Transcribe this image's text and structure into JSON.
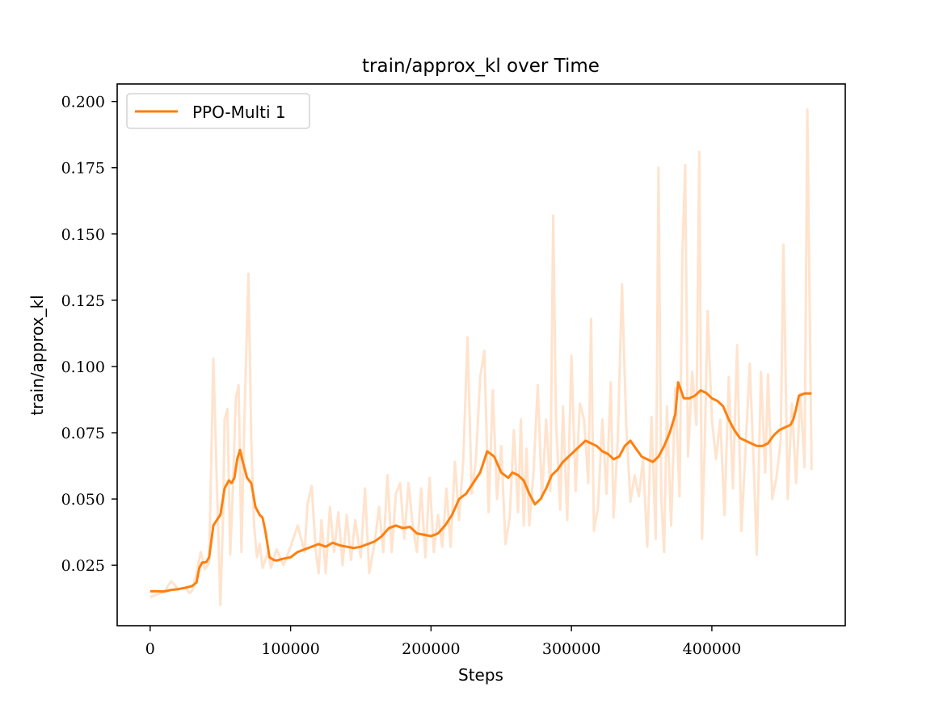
{
  "chart_data": {
    "type": "line",
    "title": "train/approx_kl over Time",
    "xlabel": "Steps",
    "ylabel": "train/approx_kl",
    "xlim": [
      -23500,
      495000
    ],
    "ylim": [
      0.0022,
      0.2066
    ],
    "x_ticks": [
      0,
      100000,
      200000,
      300000,
      400000
    ],
    "x_tick_labels": [
      "0",
      "100000",
      "200000",
      "300000",
      "400000"
    ],
    "y_ticks": [
      0.025,
      0.05,
      0.075,
      0.1,
      0.125,
      0.15,
      0.175,
      0.2
    ],
    "y_tick_labels": [
      "0.025",
      "0.050",
      "0.075",
      "0.100",
      "0.125",
      "0.150",
      "0.175",
      "0.200"
    ],
    "grid": false,
    "legend": {
      "position": "top-left",
      "entries": [
        "PPO-Multi 1"
      ]
    },
    "colors": {
      "smoothed": "#ff7f0e",
      "raw": "#ffe3cd",
      "axes": "#000000"
    },
    "series": [
      {
        "name": "PPO-Multi 1",
        "role": "smoothed",
        "points": [
          [
            0,
            0.0152
          ],
          [
            5000,
            0.0152
          ],
          [
            10000,
            0.0151
          ],
          [
            15000,
            0.0157
          ],
          [
            20000,
            0.016
          ],
          [
            25000,
            0.0165
          ],
          [
            30000,
            0.0172
          ],
          [
            33000,
            0.0185
          ],
          [
            35000,
            0.024
          ],
          [
            37000,
            0.026
          ],
          [
            40000,
            0.0262
          ],
          [
            42000,
            0.028
          ],
          [
            45000,
            0.04
          ],
          [
            48000,
            0.0425
          ],
          [
            50000,
            0.044
          ],
          [
            53000,
            0.054
          ],
          [
            56000,
            0.057
          ],
          [
            58000,
            0.056
          ],
          [
            60000,
            0.058
          ],
          [
            62000,
            0.065
          ],
          [
            64000,
            0.0685
          ],
          [
            66000,
            0.064
          ],
          [
            69000,
            0.058
          ],
          [
            72000,
            0.056
          ],
          [
            75000,
            0.047
          ],
          [
            78000,
            0.044
          ],
          [
            80000,
            0.043
          ],
          [
            82000,
            0.038
          ],
          [
            85000,
            0.028
          ],
          [
            88000,
            0.027
          ],
          [
            90000,
            0.0268
          ],
          [
            95000,
            0.0275
          ],
          [
            100000,
            0.028
          ],
          [
            105000,
            0.03
          ],
          [
            110000,
            0.031
          ],
          [
            115000,
            0.032
          ],
          [
            120000,
            0.033
          ],
          [
            125000,
            0.032
          ],
          [
            130000,
            0.0335
          ],
          [
            135000,
            0.0325
          ],
          [
            140000,
            0.032
          ],
          [
            145000,
            0.0315
          ],
          [
            150000,
            0.032
          ],
          [
            155000,
            0.033
          ],
          [
            160000,
            0.034
          ],
          [
            165000,
            0.036
          ],
          [
            170000,
            0.039
          ],
          [
            175000,
            0.04
          ],
          [
            180000,
            0.039
          ],
          [
            185000,
            0.0395
          ],
          [
            190000,
            0.037
          ],
          [
            195000,
            0.0365
          ],
          [
            200000,
            0.036
          ],
          [
            205000,
            0.037
          ],
          [
            210000,
            0.04
          ],
          [
            215000,
            0.044
          ],
          [
            220000,
            0.05
          ],
          [
            225000,
            0.052
          ],
          [
            230000,
            0.056
          ],
          [
            235000,
            0.06
          ],
          [
            240000,
            0.068
          ],
          [
            245000,
            0.066
          ],
          [
            250000,
            0.06
          ],
          [
            255000,
            0.058
          ],
          [
            258000,
            0.06
          ],
          [
            262000,
            0.059
          ],
          [
            266000,
            0.057
          ],
          [
            270000,
            0.052
          ],
          [
            274000,
            0.048
          ],
          [
            278000,
            0.05
          ],
          [
            282000,
            0.054
          ],
          [
            286000,
            0.059
          ],
          [
            290000,
            0.061
          ],
          [
            294000,
            0.064
          ],
          [
            298000,
            0.066
          ],
          [
            302000,
            0.068
          ],
          [
            306000,
            0.07
          ],
          [
            310000,
            0.072
          ],
          [
            314000,
            0.071
          ],
          [
            318000,
            0.07
          ],
          [
            322000,
            0.068
          ],
          [
            326000,
            0.067
          ],
          [
            330000,
            0.065
          ],
          [
            334000,
            0.066
          ],
          [
            338000,
            0.07
          ],
          [
            342000,
            0.072
          ],
          [
            346000,
            0.069
          ],
          [
            350000,
            0.066
          ],
          [
            354000,
            0.065
          ],
          [
            358000,
            0.064
          ],
          [
            362000,
            0.066
          ],
          [
            366000,
            0.07
          ],
          [
            370000,
            0.075
          ],
          [
            374000,
            0.082
          ],
          [
            376000,
            0.094
          ],
          [
            380000,
            0.088
          ],
          [
            384000,
            0.088
          ],
          [
            388000,
            0.089
          ],
          [
            392000,
            0.091
          ],
          [
            396000,
            0.09
          ],
          [
            400000,
            0.088
          ],
          [
            404000,
            0.087
          ],
          [
            408000,
            0.085
          ],
          [
            412000,
            0.08
          ],
          [
            416000,
            0.076
          ],
          [
            420000,
            0.073
          ],
          [
            424000,
            0.072
          ],
          [
            428000,
            0.071
          ],
          [
            432000,
            0.07
          ],
          [
            436000,
            0.07
          ],
          [
            440000,
            0.071
          ],
          [
            444000,
            0.074
          ],
          [
            448000,
            0.076
          ],
          [
            452000,
            0.077
          ],
          [
            456000,
            0.078
          ],
          [
            458000,
            0.08
          ],
          [
            460000,
            0.084
          ],
          [
            462000,
            0.089
          ],
          [
            466000,
            0.0898
          ],
          [
            471000,
            0.0898
          ]
        ]
      },
      {
        "name": "",
        "role": "raw",
        "points": [
          [
            0,
            0.013
          ],
          [
            5000,
            0.014
          ],
          [
            10000,
            0.015
          ],
          [
            15000,
            0.019
          ],
          [
            20000,
            0.016
          ],
          [
            25000,
            0.0165
          ],
          [
            28000,
            0.0145
          ],
          [
            30000,
            0.0155
          ],
          [
            33000,
            0.022
          ],
          [
            36000,
            0.03
          ],
          [
            39000,
            0.0235
          ],
          [
            42000,
            0.026
          ],
          [
            45000,
            0.103
          ],
          [
            48000,
            0.046
          ],
          [
            50000,
            0.01
          ],
          [
            52000,
            0.045
          ],
          [
            53000,
            0.08
          ],
          [
            55000,
            0.084
          ],
          [
            57000,
            0.029
          ],
          [
            59000,
            0.055
          ],
          [
            61000,
            0.088
          ],
          [
            63000,
            0.093
          ],
          [
            65000,
            0.03
          ],
          [
            67000,
            0.078
          ],
          [
            70000,
            0.135
          ],
          [
            72000,
            0.072
          ],
          [
            74000,
            0.04
          ],
          [
            76000,
            0.028
          ],
          [
            78000,
            0.033
          ],
          [
            80000,
            0.024
          ],
          [
            84000,
            0.03
          ],
          [
            86000,
            0.024
          ],
          [
            90000,
            0.031
          ],
          [
            95000,
            0.025
          ],
          [
            100000,
            0.032
          ],
          [
            105000,
            0.04
          ],
          [
            110000,
            0.03
          ],
          [
            112000,
            0.048
          ],
          [
            115000,
            0.055
          ],
          [
            118000,
            0.03
          ],
          [
            120000,
            0.022
          ],
          [
            122000,
            0.042
          ],
          [
            125000,
            0.022
          ],
          [
            128000,
            0.047
          ],
          [
            131000,
            0.03
          ],
          [
            134000,
            0.045
          ],
          [
            137000,
            0.025
          ],
          [
            140000,
            0.044
          ],
          [
            143000,
            0.027
          ],
          [
            146000,
            0.042
          ],
          [
            150000,
            0.028
          ],
          [
            153000,
            0.054
          ],
          [
            156000,
            0.022
          ],
          [
            160000,
            0.034
          ],
          [
            163000,
            0.047
          ],
          [
            166000,
            0.03
          ],
          [
            169000,
            0.059
          ],
          [
            172000,
            0.03
          ],
          [
            175000,
            0.052
          ],
          [
            178000,
            0.056
          ],
          [
            181000,
            0.035
          ],
          [
            184000,
            0.056
          ],
          [
            187000,
            0.04
          ],
          [
            190000,
            0.03
          ],
          [
            193000,
            0.054
          ],
          [
            196000,
            0.028
          ],
          [
            199000,
            0.058
          ],
          [
            202000,
            0.03
          ],
          [
            205000,
            0.044
          ],
          [
            208000,
            0.032
          ],
          [
            211000,
            0.054
          ],
          [
            214000,
            0.032
          ],
          [
            217000,
            0.064
          ],
          [
            220000,
            0.042
          ],
          [
            223000,
            0.065
          ],
          [
            226000,
            0.111
          ],
          [
            229000,
            0.052
          ],
          [
            232000,
            0.065
          ],
          [
            235000,
            0.096
          ],
          [
            238000,
            0.106
          ],
          [
            241000,
            0.045
          ],
          [
            244000,
            0.091
          ],
          [
            247000,
            0.05
          ],
          [
            250000,
            0.07
          ],
          [
            253000,
            0.033
          ],
          [
            256000,
            0.043
          ],
          [
            259000,
            0.076
          ],
          [
            262000,
            0.045
          ],
          [
            264000,
            0.08
          ],
          [
            266000,
            0.04
          ],
          [
            268000,
            0.069
          ],
          [
            270000,
            0.04
          ],
          [
            273000,
            0.06
          ],
          [
            276000,
            0.093
          ],
          [
            279000,
            0.05
          ],
          [
            282000,
            0.08
          ],
          [
            285000,
            0.053
          ],
          [
            287000,
            0.157
          ],
          [
            289000,
            0.08
          ],
          [
            292000,
            0.046
          ],
          [
            294000,
            0.085
          ],
          [
            297000,
            0.042
          ],
          [
            300000,
            0.104
          ],
          [
            303000,
            0.053
          ],
          [
            306000,
            0.086
          ],
          [
            309000,
            0.08
          ],
          [
            312000,
            0.056
          ],
          [
            314000,
            0.118
          ],
          [
            316000,
            0.038
          ],
          [
            319000,
            0.047
          ],
          [
            322000,
            0.08
          ],
          [
            325000,
            0.052
          ],
          [
            328000,
            0.094
          ],
          [
            330000,
            0.043
          ],
          [
            333000,
            0.072
          ],
          [
            336000,
            0.131
          ],
          [
            339000,
            0.078
          ],
          [
            342000,
            0.049
          ],
          [
            345000,
            0.059
          ],
          [
            348000,
            0.051
          ],
          [
            351000,
            0.065
          ],
          [
            354000,
            0.032
          ],
          [
            357000,
            0.081
          ],
          [
            360000,
            0.035
          ],
          [
            362000,
            0.175
          ],
          [
            364000,
            0.05
          ],
          [
            366000,
            0.03
          ],
          [
            368000,
            0.085
          ],
          [
            371000,
            0.04
          ],
          [
            374000,
            0.092
          ],
          [
            377000,
            0.051
          ],
          [
            379000,
            0.142
          ],
          [
            381000,
            0.176
          ],
          [
            383000,
            0.066
          ],
          [
            386000,
            0.098
          ],
          [
            389000,
            0.078
          ],
          [
            391000,
            0.181
          ],
          [
            393000,
            0.035
          ],
          [
            395000,
            0.072
          ],
          [
            397000,
            0.121
          ],
          [
            400000,
            0.08
          ],
          [
            403000,
            0.065
          ],
          [
            406000,
            0.08
          ],
          [
            409000,
            0.044
          ],
          [
            412000,
            0.096
          ],
          [
            415000,
            0.054
          ],
          [
            418000,
            0.108
          ],
          [
            421000,
            0.038
          ],
          [
            424000,
            0.069
          ],
          [
            427000,
            0.101
          ],
          [
            430000,
            0.06
          ],
          [
            432000,
            0.029
          ],
          [
            435000,
            0.098
          ],
          [
            438000,
            0.06
          ],
          [
            440000,
            0.097
          ],
          [
            443000,
            0.05
          ],
          [
            446000,
            0.058
          ],
          [
            449000,
            0.072
          ],
          [
            451000,
            0.146
          ],
          [
            454000,
            0.05
          ],
          [
            457000,
            0.086
          ],
          [
            460000,
            0.056
          ],
          [
            463000,
            0.09
          ],
          [
            466000,
            0.062
          ],
          [
            468000,
            0.197
          ],
          [
            471000,
            0.061
          ]
        ]
      }
    ]
  }
}
